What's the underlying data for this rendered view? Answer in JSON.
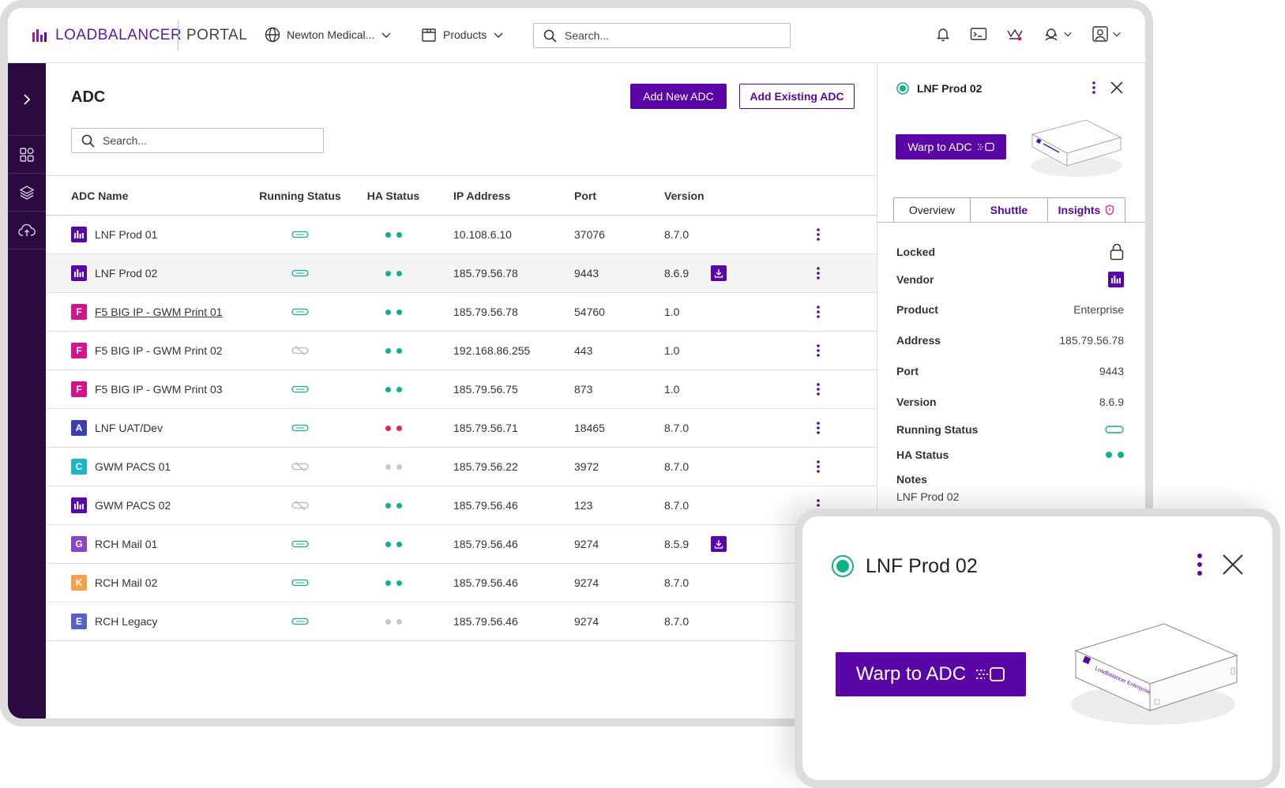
{
  "header": {
    "logo_text": "LOADBALANCER",
    "portal_text": "PORTAL",
    "org_label": "Newton Medical...",
    "products_label": "Products",
    "search_placeholder": "Search..."
  },
  "page": {
    "title": "ADC",
    "add_new_label": "Add New ADC",
    "add_existing_label": "Add Existing ADC",
    "search_placeholder": "Search..."
  },
  "table": {
    "columns": [
      "ADC Name",
      "Running Status",
      "HA Status",
      "IP Address",
      "Port",
      "Version"
    ],
    "rows": [
      {
        "name": "LNF Prod 01",
        "vendor": "L",
        "color": "#5a06a6",
        "running": "on",
        "ha": "green",
        "ip": "10.108.6.10",
        "port": "37076",
        "version": "8.7.0",
        "update": false
      },
      {
        "name": "LNF Prod 02",
        "vendor": "L",
        "color": "#5a06a6",
        "running": "on",
        "ha": "green",
        "ip": "185.79.56.78",
        "port": "9443",
        "version": "8.6.9",
        "update": true
      },
      {
        "name": "F5 BIG IP - GWM Print 01",
        "vendor": "F",
        "color": "#d4138f",
        "running": "on",
        "ha": "green",
        "ip": "185.79.56.78",
        "port": "54760",
        "version": "1.0",
        "update": false
      },
      {
        "name": "F5 BIG IP - GWM Print 02",
        "vendor": "F",
        "color": "#d4138f",
        "running": "off",
        "ha": "green",
        "ip": "192.168.86.255",
        "port": "443",
        "version": "1.0",
        "update": false
      },
      {
        "name": "F5 BIG IP - GWM Print 03",
        "vendor": "F",
        "color": "#d4138f",
        "running": "on",
        "ha": "green",
        "ip": "185.79.56.75",
        "port": "873",
        "version": "1.0",
        "update": false
      },
      {
        "name": "LNF UAT/Dev",
        "vendor": "A",
        "color": "#3b3fb0",
        "running": "on",
        "ha": "red",
        "ip": "185.79.56.71",
        "port": "18465",
        "version": "8.7.0",
        "update": false
      },
      {
        "name": "GWM PACS 01",
        "vendor": "C",
        "color": "#1bb6c2",
        "running": "off",
        "ha": "grey",
        "ip": "185.79.56.22",
        "port": "3972",
        "version": "8.7.0",
        "update": false
      },
      {
        "name": "GWM PACS 02",
        "vendor": "L",
        "color": "#5a06a6",
        "running": "off",
        "ha": "green",
        "ip": "185.79.56.46",
        "port": "123",
        "version": "8.7.0",
        "update": false
      },
      {
        "name": "RCH Mail 01",
        "vendor": "G",
        "color": "#8b45c4",
        "running": "on",
        "ha": "green",
        "ip": "185.79.56.46",
        "port": "9274",
        "version": "8.5.9",
        "update": true
      },
      {
        "name": "RCH Mail 02",
        "vendor": "K",
        "color": "#f5a04a",
        "running": "on",
        "ha": "green",
        "ip": "185.79.56.46",
        "port": "9274",
        "version": "8.7.0",
        "update": false
      },
      {
        "name": "RCH Legacy",
        "vendor": "E",
        "color": "#5860c8",
        "running": "on",
        "ha": "grey",
        "ip": "185.79.56.46",
        "port": "9274",
        "version": "8.7.0",
        "update": false
      }
    ]
  },
  "panel": {
    "title": "LNF Prod 02",
    "warp_label": "Warp to ADC",
    "tabs": [
      "Overview",
      "Shuttle",
      "Insights"
    ],
    "locked_label": "Locked",
    "vendor_label": "Vendor",
    "product_label": "Product",
    "product_value": "Enterprise",
    "address_label": "Address",
    "address_value": "185.79.56.78",
    "port_label": "Port",
    "port_value": "9443",
    "version_label": "Version",
    "version_value": "8.6.9",
    "running_label": "Running Status",
    "ha_label": "HA Status",
    "notes_label": "Notes",
    "notes_value": "LNF Prod 02"
  },
  "device": {
    "brand": "Loadbalancer",
    "model": "Enterprise"
  },
  "colors": {
    "brand_purple": "#5a06a6",
    "sidebar": "#2a0a40",
    "status_green": "#12b08a",
    "status_red": "#e0245e",
    "status_grey": "#c8c8c8"
  }
}
